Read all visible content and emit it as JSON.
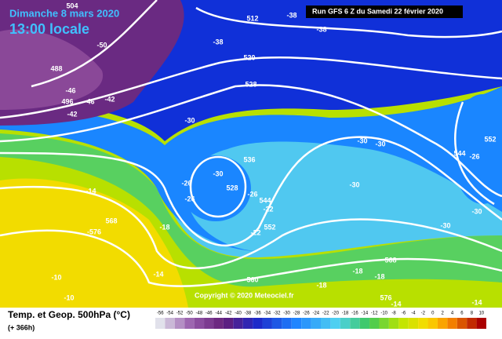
{
  "header": {
    "title": "Dimanche 8 mars 2020",
    "time": "13:00 locale",
    "run": "Run GFS 6 Z du Samedi 22 février 2020"
  },
  "copyright": "Copyright © 2020 Meteociel.fr",
  "footer": {
    "label": "Temp. et Geop. 500hPa (°C)",
    "lead": "(+ 366h)"
  },
  "scale": [
    -56,
    -54,
    -52,
    -50,
    -48,
    -46,
    -44,
    -42,
    -40,
    -38,
    -36,
    -34,
    -32,
    -30,
    -28,
    -26,
    -24,
    -22,
    -20,
    -18,
    -16,
    -14,
    -12,
    -10,
    -8,
    -6,
    -4,
    -2,
    0,
    2,
    4,
    6,
    8,
    10
  ],
  "map_labels": [
    "504",
    "-38",
    "512",
    "-38",
    "-50",
    "488",
    "-38",
    "520",
    "-46",
    "496",
    "-46",
    "-42",
    "-42",
    "528",
    "-30",
    "-30",
    "-30",
    "552",
    "544",
    "-26",
    "536",
    "-30",
    "-26",
    "-26",
    "528",
    "-26",
    "544",
    "-22",
    "552",
    "-22",
    "-30",
    "-30",
    "-30",
    "-14",
    "568",
    "-576",
    "-18",
    "-14",
    "-10",
    "560",
    "-18",
    "-18",
    "-18",
    "568",
    "576",
    "-14",
    "-14",
    "-10"
  ]
}
